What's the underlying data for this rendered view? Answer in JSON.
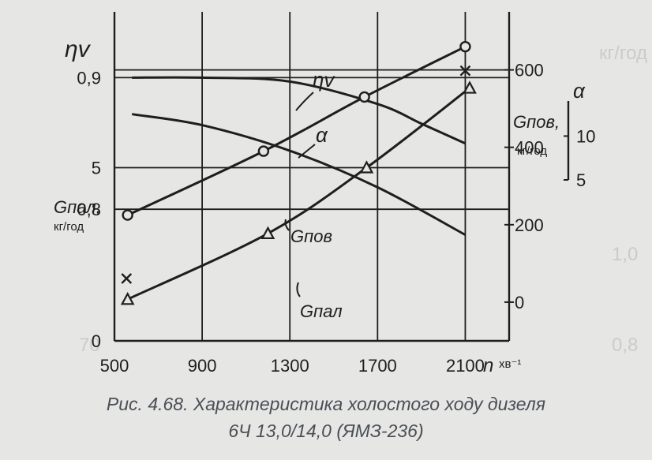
{
  "caption": {
    "line1": "Рис. 4.68. Характеристика холостого ходу дизеля",
    "line2": "6Ч 13,0/14,0 (ЯМЗ-236)"
  },
  "chart_data": {
    "type": "line",
    "x_axis": {
      "label": "n",
      "unit": "хв⁻¹",
      "range": [
        500,
        2300
      ],
      "ticks": [
        500,
        900,
        1300,
        1700,
        2100
      ],
      "tick_labels": [
        "500",
        "900",
        "1300",
        "1700",
        "2100"
      ]
    },
    "axes": {
      "eta": {
        "label": "ηv",
        "range": [
          0.7,
          0.95
        ],
        "ticks": [
          0.8,
          0.9
        ],
        "tick_labels": [
          "0,8",
          "0,9"
        ]
      },
      "g_pal": {
        "label": "Gпал,",
        "unit": "кг/год",
        "range": [
          0,
          9.5
        ],
        "ticks": [
          0,
          5
        ],
        "tick_labels": [
          "0",
          "5"
        ]
      },
      "g_pov": {
        "label": "Gпов,",
        "unit": "кг/год",
        "range": [
          -100,
          750
        ],
        "ticks": [
          0,
          200,
          400,
          600
        ],
        "tick_labels": [
          "0",
          "200",
          "400",
          "600"
        ]
      },
      "alpha": {
        "label": "α",
        "range": [
          5,
          14
        ],
        "ticks": [
          5,
          10
        ],
        "tick_labels": [
          "5",
          "10"
        ]
      }
    },
    "grid": true,
    "series": [
      {
        "name": "ηv",
        "axis": "eta",
        "marker": "none",
        "x": [
          580,
          900,
          1300,
          1700,
          1900,
          2100
        ],
        "y": [
          0.9,
          0.9,
          0.897,
          0.88,
          0.865,
          0.85
        ]
      },
      {
        "name": "α",
        "axis": "alpha",
        "marker": "none",
        "x": [
          580,
          900,
          1300,
          1700,
          2100
        ],
        "y": [
          11.2,
          10.9,
          10.2,
          9.2,
          7.9
        ]
      },
      {
        "name": "Gпов",
        "axis": "g_pov",
        "marker": "circle",
        "x": [
          560,
          1180,
          1640,
          2100
        ],
        "y": [
          225,
          390,
          530,
          660
        ]
      },
      {
        "name": "Gпал",
        "axis": "g_pal",
        "marker": "triangle",
        "x": [
          560,
          1200,
          1650,
          2120
        ],
        "y": [
          1.2,
          3.1,
          5.0,
          7.3
        ]
      }
    ],
    "extra_markers": [
      {
        "symbol": "x",
        "axis": "g_pal",
        "x": [
          555,
          2100
        ],
        "y": [
          1.8,
          7.8
        ]
      }
    ],
    "curve_labels": [
      {
        "text": "ηv",
        "series": "ηv"
      },
      {
        "text": "α",
        "series": "α"
      },
      {
        "text": "Gпов",
        "series": "Gпов"
      },
      {
        "text": "Gпал",
        "series": "Gпал"
      }
    ]
  }
}
